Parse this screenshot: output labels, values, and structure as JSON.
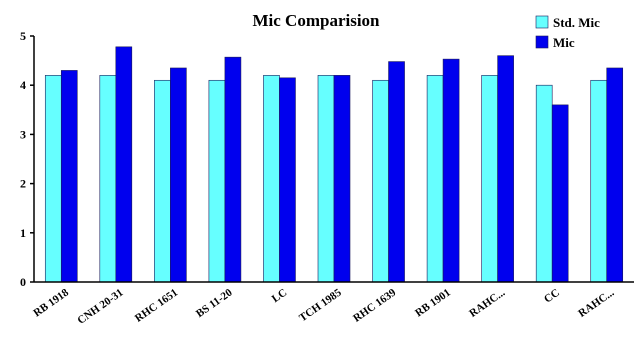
{
  "chart_data": {
    "type": "bar",
    "title": "Mic Comparision",
    "xlabel": "",
    "ylabel": "",
    "ylim": [
      0,
      5
    ],
    "yticks": [
      0,
      1,
      2,
      3,
      4,
      5
    ],
    "grid": false,
    "legend_position": "top-right",
    "categories": [
      "RB 1918",
      "CNH 20-31",
      "RHC 1651",
      "BS 11-20",
      "LC",
      "TCH 1985",
      "RHC 1639",
      "RB 1901",
      "RAHC...",
      "CC",
      "RAHC..."
    ],
    "series": [
      {
        "name": "Std. Mic",
        "color": "#66FFFF",
        "values": [
          4.2,
          4.2,
          4.1,
          4.1,
          4.2,
          4.2,
          4.1,
          4.2,
          4.2,
          4.0,
          4.1
        ]
      },
      {
        "name": "Mic",
        "color": "#0000EE",
        "values": [
          4.3,
          4.78,
          4.35,
          4.57,
          4.15,
          4.2,
          4.48,
          4.53,
          4.6,
          3.6,
          4.35
        ]
      }
    ]
  }
}
